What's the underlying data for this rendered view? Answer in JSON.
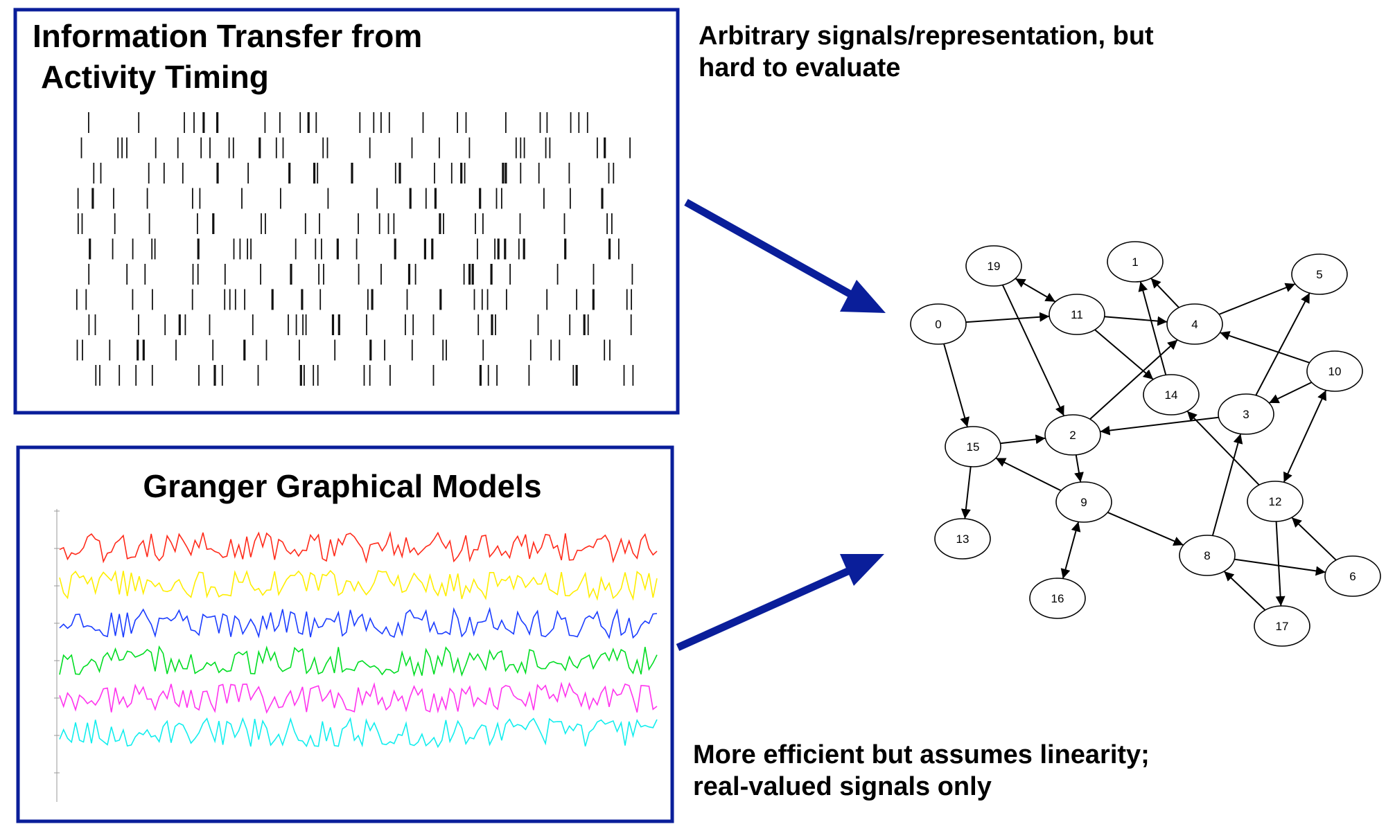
{
  "panel_top": {
    "title_line1": "Information Transfer from",
    "title_line2": "Activity Timing"
  },
  "panel_bottom": {
    "title": "Granger Graphical Models",
    "series_colors": [
      "#ff2a1a",
      "#ffee00",
      "#1a3cff",
      "#00dd22",
      "#ff33ee",
      "#11eeee"
    ]
  },
  "notes": {
    "top_line1": "Arbitrary signals/representation, but",
    "top_line2": "hard to evaluate",
    "bottom_line1": "More efficient but assumes linearity;",
    "bottom_line2": "real-valued signals only"
  },
  "arrow_color": "#0a1e9a",
  "graph": {
    "nodes": [
      "0",
      "1",
      "2",
      "3",
      "4",
      "5",
      "6",
      "8",
      "9",
      "10",
      "11",
      "12",
      "13",
      "14",
      "15",
      "16",
      "17",
      "19"
    ],
    "edges": [
      [
        "0",
        "11",
        "directed"
      ],
      [
        "0",
        "15",
        "directed"
      ],
      [
        "19",
        "11",
        "bidirectional"
      ],
      [
        "19",
        "2",
        "directed"
      ],
      [
        "11",
        "4",
        "directed"
      ],
      [
        "11",
        "14",
        "directed"
      ],
      [
        "4",
        "1",
        "directed"
      ],
      [
        "4",
        "5",
        "directed"
      ],
      [
        "10",
        "4",
        "directed"
      ],
      [
        "10",
        "3",
        "directed"
      ],
      [
        "10",
        "12",
        "bidirectional"
      ],
      [
        "14",
        "1",
        "directed"
      ],
      [
        "3",
        "5",
        "directed"
      ],
      [
        "3",
        "2",
        "directed"
      ],
      [
        "2",
        "4",
        "directed"
      ],
      [
        "2",
        "9",
        "directed"
      ],
      [
        "15",
        "2",
        "directed"
      ],
      [
        "15",
        "13",
        "directed"
      ],
      [
        "9",
        "15",
        "directed"
      ],
      [
        "9",
        "16",
        "bidirectional"
      ],
      [
        "9",
        "8",
        "directed"
      ],
      [
        "12",
        "14",
        "directed"
      ],
      [
        "12",
        "17",
        "directed"
      ],
      [
        "8",
        "3",
        "directed"
      ],
      [
        "8",
        "6",
        "directed"
      ],
      [
        "6",
        "12",
        "directed"
      ],
      [
        "17",
        "8",
        "directed"
      ]
    ]
  }
}
